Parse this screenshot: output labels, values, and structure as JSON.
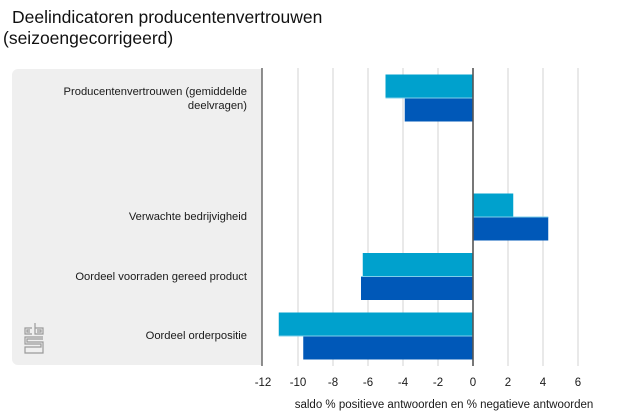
{
  "title": {
    "line1": "Deelindicatoren producentenvertrouwen",
    "line2": "(seizoengecorrigeerd)"
  },
  "logo": "cbs-logo",
  "colors": {
    "series1": "#00a1cd",
    "series2": "#0058b8",
    "panel": "#efefef",
    "grid": "#dddddd",
    "axis": "#555555"
  },
  "chart_data": {
    "type": "bar",
    "orientation": "horizontal",
    "title": "Deelindicatoren producentenvertrouwen (seizoengecorrigeerd)",
    "xlabel": "saldo % positieve antwoorden en % negatieve antwoorden",
    "ylabel": "",
    "xlim": [
      -12,
      7
    ],
    "xticks": [
      -12,
      -10,
      -8,
      -6,
      -4,
      -2,
      0,
      2,
      4,
      6
    ],
    "grid": true,
    "legend": "none",
    "categories": [
      "Producentenvertrouwen (gemiddelde\ndeelvragen)",
      "",
      "Verwachte bedrijvigheid",
      "Oordeel voorraden gereed product",
      "Oordeel orderpositie"
    ],
    "series": [
      {
        "name": "series-light",
        "values": [
          -5.0,
          null,
          2.3,
          -6.3,
          -11.1
        ]
      },
      {
        "name": "series-dark",
        "values": [
          -3.9,
          null,
          4.3,
          -6.4,
          -9.7
        ]
      }
    ]
  }
}
